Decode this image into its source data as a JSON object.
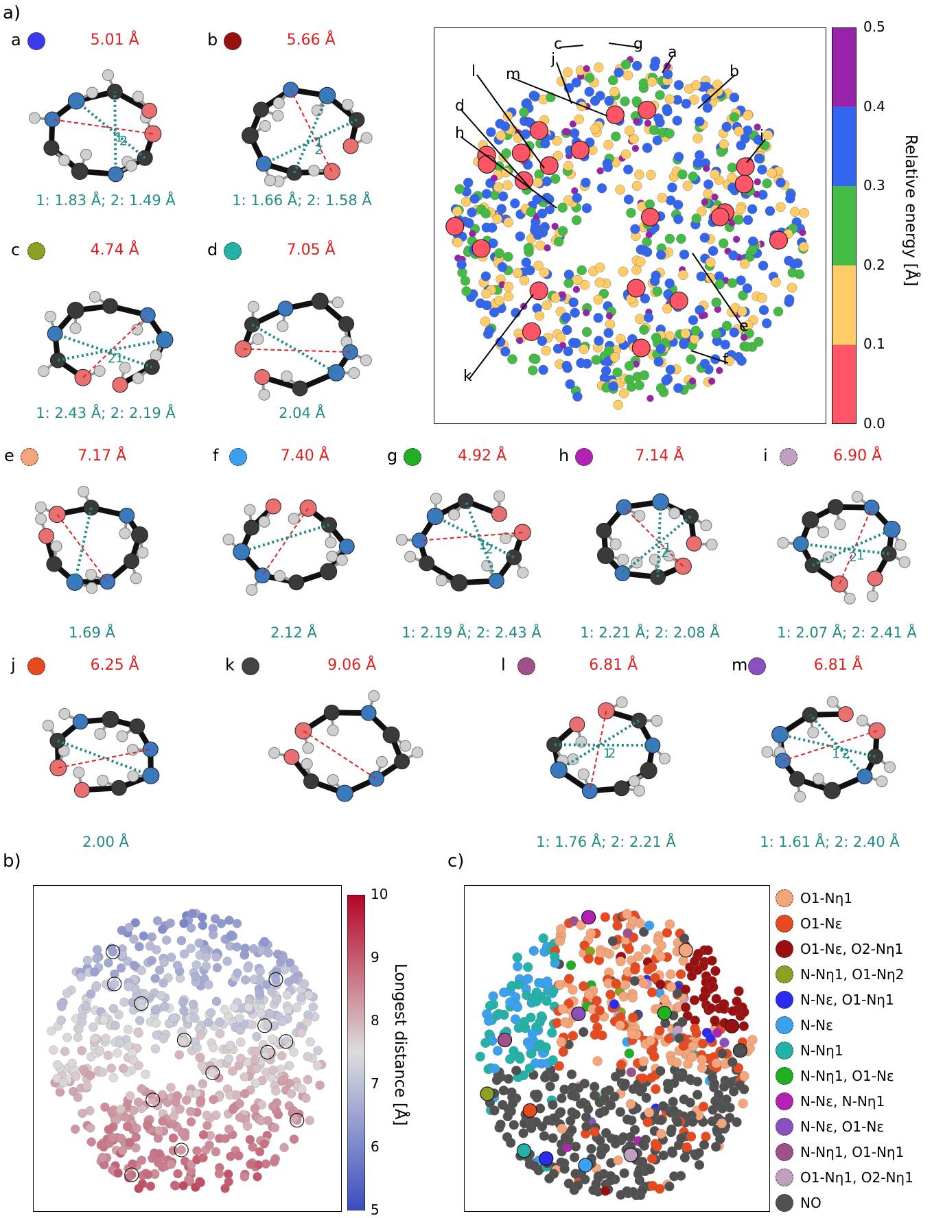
{
  "panel_labels": {
    "a": "a)",
    "b": "b)",
    "c": "c)"
  },
  "molecules": [
    {
      "id": "a",
      "color": "#3a3af0",
      "dist": "5.01 Å",
      "hb": "1: 1.83 Å; 2: 1.49 Å",
      "bonds": [
        "1",
        "2"
      ]
    },
    {
      "id": "b",
      "color": "#9a0f0f",
      "dist": "5.66 Å",
      "hb": "1: 1.66 Å; 2: 1.58 Å",
      "bonds": [
        "1",
        "2"
      ]
    },
    {
      "id": "c",
      "color": "#8ca024",
      "dist": "4.74 Å",
      "hb": "1: 2.43 Å; 2: 2.19 Å",
      "bonds": [
        "1",
        "2"
      ]
    },
    {
      "id": "d",
      "color": "#22b2a8",
      "dist": "7.05 Å",
      "hb": "2.04 Å",
      "bonds": []
    },
    {
      "id": "e",
      "color": "#f4a57a",
      "dist": "7.17 Å",
      "hb": "1.69 Å",
      "bonds": []
    },
    {
      "id": "f",
      "color": "#3aa0f0",
      "dist": "7.40 Å",
      "hb": "2.12 Å",
      "bonds": []
    },
    {
      "id": "g",
      "color": "#22b022",
      "dist": "4.92 Å",
      "hb": "1: 2.19 Å; 2: 2.43 Å",
      "bonds": [
        "1",
        "2"
      ]
    },
    {
      "id": "h",
      "color": "#b422b4",
      "dist": "7.14 Å",
      "hb": "1: 2.21 Å; 2: 2.08 Å",
      "bonds": [
        "1",
        "2"
      ]
    },
    {
      "id": "i",
      "color": "#c0a0c0",
      "dist": "6.90 Å",
      "hb": "1: 2.07 Å; 2: 2.41 Å",
      "bonds": [
        "1",
        "2"
      ]
    },
    {
      "id": "j",
      "color": "#e84a20",
      "dist": "6.25 Å",
      "hb": "2.00 Å",
      "bonds": []
    },
    {
      "id": "k",
      "color": "#444444",
      "dist": "9.06 Å",
      "hb": "",
      "bonds": []
    },
    {
      "id": "l",
      "color": "#a05088",
      "dist": "6.81 Å",
      "hb": "1: 1.76 Å; 2: 2.21 Å",
      "bonds": [
        "1",
        "2"
      ]
    },
    {
      "id": "m",
      "color": "#8a50c0",
      "dist": "6.81 Å",
      "hb": "1: 1.61 Å; 2: 2.40 Å",
      "bonds": [
        "1",
        "2"
      ]
    }
  ],
  "chart_data": [
    {
      "id": "energy-map",
      "type": "scatter",
      "title": "",
      "xlabel": "",
      "ylabel": "",
      "colorbar": {
        "label": "Relative energy [Å]",
        "range": [
          0.0,
          0.5
        ],
        "ticks": [
          "0.0",
          "0.1",
          "0.2",
          "0.3",
          "0.4",
          "0.5"
        ],
        "bins": [
          {
            "from": 0.0,
            "to": 0.1,
            "color": "#ff5566"
          },
          {
            "from": 0.1,
            "to": 0.2,
            "color": "#ffcc66"
          },
          {
            "from": 0.2,
            "to": 0.3,
            "color": "#44bb44"
          },
          {
            "from": 0.3,
            "to": 0.4,
            "color": "#3366ee"
          },
          {
            "from": 0.4,
            "to": 0.5,
            "color": "#9922aa"
          }
        ]
      },
      "annotations": [
        "a",
        "b",
        "c",
        "d",
        "e",
        "f",
        "g",
        "h",
        "i",
        "j",
        "k",
        "l",
        "m"
      ]
    },
    {
      "id": "distance-map",
      "type": "scatter",
      "title": "",
      "colorbar": {
        "label": "Longest distance [Å]",
        "range": [
          5,
          10
        ],
        "ticks": [
          "5",
          "6",
          "7",
          "8",
          "9",
          "10"
        ],
        "colormap": "coolwarm"
      }
    },
    {
      "id": "hbond-map",
      "type": "scatter",
      "title": "",
      "legend": {
        "placement": "right",
        "entries": [
          {
            "label": "O1-Nη1",
            "color": "#f4a57a"
          },
          {
            "label": "O1-Nε",
            "color": "#e84a20"
          },
          {
            "label": "O1-Nε, O2-Nη1",
            "color": "#9a0f0f"
          },
          {
            "label": "N-Nη1, O1-Nη2",
            "color": "#8ca024"
          },
          {
            "label": "N-Nε, O1-Nη1",
            "color": "#2a2af0"
          },
          {
            "label": "N-Nε",
            "color": "#3aa0f0"
          },
          {
            "label": "N-Nη1",
            "color": "#22b2a8"
          },
          {
            "label": "N-Nη1, O1-Nε",
            "color": "#22b022"
          },
          {
            "label": "N-Nε, N-Nη1",
            "color": "#b422b4"
          },
          {
            "label": "N-Nε, O1-Nε",
            "color": "#8a50c0"
          },
          {
            "label": "N-Nη1, O1-Nη1",
            "color": "#a05088"
          },
          {
            "label": "O1-Nη1, O2-Nη1",
            "color": "#c0a0c0"
          },
          {
            "label": "NO",
            "color": "#505050"
          }
        ]
      }
    }
  ]
}
